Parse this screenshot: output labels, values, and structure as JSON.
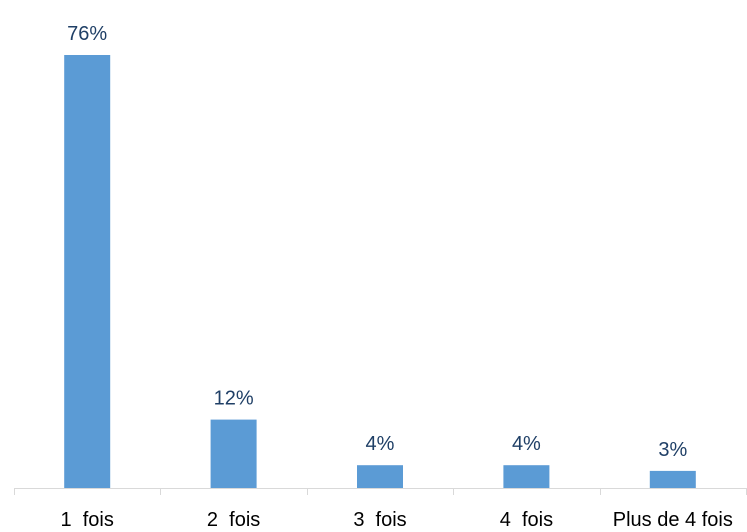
{
  "chart_data": {
    "type": "bar",
    "categories": [
      "1  fois",
      "2  fois",
      "3  fois",
      "4  fois",
      "Plus de 4 fois"
    ],
    "values": [
      76,
      12,
      4,
      4,
      3
    ],
    "data_labels": [
      "76%",
      "12%",
      "4%",
      "4%",
      "3%"
    ],
    "unit": "%",
    "title": "",
    "xlabel": "",
    "ylabel": "",
    "ylim": [
      0,
      76
    ],
    "grid": false,
    "legend": "none",
    "colors": {
      "bar": "#5b9bd5",
      "data_label": "#1f3f66",
      "tick_label": "#000000",
      "axis": "#d9d9d9"
    }
  }
}
